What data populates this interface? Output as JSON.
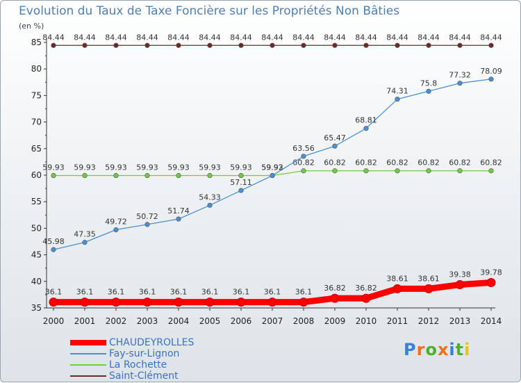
{
  "chart_data": {
    "type": "line",
    "title": "Evolution du Taux de Taxe Foncière sur les Propriétés Non Bâties",
    "unit_label": "(en %)",
    "xlabel": "",
    "ylabel": "",
    "x": [
      "2000",
      "2001",
      "2002",
      "2003",
      "2004",
      "2005",
      "2006",
      "2007",
      "2008",
      "2009",
      "2010",
      "2011",
      "2012",
      "2013",
      "2014"
    ],
    "ylim": [
      35,
      85
    ],
    "yticks": [
      35,
      40,
      45,
      50,
      55,
      60,
      65,
      70,
      75,
      80,
      85
    ],
    "grid": false,
    "legend_position": "bottom-left",
    "series": [
      {
        "name": "CHAUDEYROLLES",
        "color": "#ff0000",
        "values": [
          36.1,
          36.1,
          36.1,
          36.1,
          36.1,
          36.1,
          36.1,
          36.1,
          36.1,
          36.82,
          36.82,
          38.61,
          38.61,
          39.38,
          39.78
        ],
        "labels": [
          "36.1",
          "36.1",
          "36.1",
          "36.1",
          "36.1",
          "36.1",
          "36.1",
          "36.1",
          "36.1",
          "36.82",
          "36.82",
          "38.61",
          "38.61",
          "39.38",
          "39.78"
        ]
      },
      {
        "name": "Fay-sur-Lignon",
        "color": "#4a90d0",
        "values": [
          45.98,
          47.35,
          49.72,
          50.72,
          51.74,
          54.33,
          57.11,
          59.92,
          63.56,
          65.47,
          68.81,
          74.31,
          75.8,
          77.32,
          78.09
        ],
        "labels": [
          "45.98",
          "47.35",
          "49.72",
          "50.72",
          "51.74",
          "54.33",
          "57.11",
          "59.92",
          "63.56",
          "65.47",
          "68.81",
          "74.31",
          "75.8",
          "77.32",
          "78.09"
        ]
      },
      {
        "name": "La Rochette",
        "color": "#6fcc40",
        "values": [
          59.93,
          59.93,
          59.93,
          59.93,
          59.93,
          59.93,
          59.93,
          59.93,
          60.82,
          60.82,
          60.82,
          60.82,
          60.82,
          60.82,
          60.82
        ],
        "labels": [
          "59.93",
          "59.93",
          "59.93",
          "59.93",
          "59.93",
          "59.93",
          "59.93",
          "59.93",
          "60.82",
          "60.82",
          "60.82",
          "60.82",
          "60.82",
          "60.82",
          "60.82"
        ]
      },
      {
        "name": "Saint-Clément",
        "color": "#6b2a2a",
        "values": [
          84.44,
          84.44,
          84.44,
          84.44,
          84.44,
          84.44,
          84.44,
          84.44,
          84.44,
          84.44,
          84.44,
          84.44,
          84.44,
          84.44,
          84.44
        ],
        "labels": [
          "84.44",
          "84.44",
          "84.44",
          "84.44",
          "84.44",
          "84.44",
          "84.44",
          "84.44",
          "84.44",
          "84.44",
          "84.44",
          "84.44",
          "84.44",
          "84.44",
          "84.44"
        ]
      }
    ]
  },
  "logo": {
    "letters": [
      "P",
      "r",
      "o",
      "x",
      "i",
      "t",
      "i"
    ],
    "colors": [
      "#3b7fd4",
      "#e8731e",
      "#4fb030",
      "#e8731e",
      "#3b7fd4",
      "#4fb030",
      "#e8c020"
    ]
  }
}
